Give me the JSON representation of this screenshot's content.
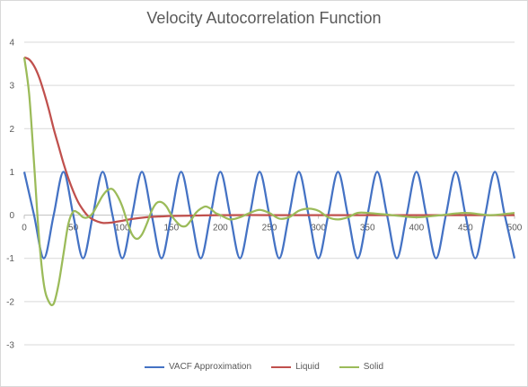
{
  "chart_data": {
    "type": "line",
    "title": "Velocity Autocorrelation Function",
    "xlabel": "",
    "ylabel": "",
    "xlim": [
      0,
      500
    ],
    "ylim": [
      -3,
      4
    ],
    "x_ticks": [
      "0",
      "50",
      "100",
      "150",
      "200",
      "250",
      "300",
      "350",
      "400",
      "450",
      "500"
    ],
    "y_ticks": [
      "4",
      "3",
      "2",
      "1",
      "0",
      "-1",
      "-2",
      "-3"
    ],
    "grid": true,
    "legend_position": "bottom",
    "series": [
      {
        "name": "VACF Approximation",
        "color": "#4472c4",
        "x": [
          0,
          10,
          20,
          30,
          40,
          50,
          60,
          70,
          80,
          90,
          100,
          110,
          120,
          130,
          140,
          150,
          160,
          170,
          180,
          190,
          200,
          210,
          220,
          230,
          240,
          250,
          260,
          270,
          280,
          290,
          300,
          310,
          320,
          330,
          340,
          350,
          360,
          370,
          380,
          390,
          400,
          410,
          420,
          430,
          440,
          450,
          460,
          470,
          480,
          490,
          500
        ],
        "y": [
          1,
          0,
          -1,
          0,
          1,
          0,
          -1,
          0,
          1,
          0,
          -1,
          0,
          1,
          0,
          -1,
          0,
          1,
          0,
          -1,
          0,
          1,
          0,
          -1,
          0,
          1,
          0,
          -1,
          0,
          1,
          0,
          -1,
          0,
          1,
          0,
          -1,
          0,
          1,
          0,
          -1,
          0,
          1,
          0,
          -1,
          0,
          1,
          0,
          -1,
          0,
          1,
          0,
          -1
        ]
      },
      {
        "name": "Liquid",
        "color": "#c0504d",
        "x": [
          0,
          5,
          10,
          15,
          20,
          25,
          30,
          35,
          40,
          45,
          50,
          55,
          60,
          65,
          70,
          75,
          80,
          85,
          90,
          95,
          100,
          110,
          120,
          130,
          140,
          150,
          175,
          200,
          250,
          300,
          350,
          400,
          450,
          500
        ],
        "y": [
          3.65,
          3.6,
          3.45,
          3.2,
          2.85,
          2.45,
          2.0,
          1.6,
          1.2,
          0.85,
          0.55,
          0.3,
          0.12,
          -0.02,
          -0.1,
          -0.15,
          -0.18,
          -0.18,
          -0.17,
          -0.15,
          -0.13,
          -0.09,
          -0.06,
          -0.04,
          -0.03,
          -0.02,
          -0.01,
          0,
          0,
          0,
          0,
          0,
          0,
          0
        ]
      },
      {
        "name": "Solid",
        "color": "#9bbb59",
        "x": [
          0,
          5,
          10,
          15,
          20,
          25,
          30,
          35,
          40,
          45,
          50,
          55,
          60,
          65,
          70,
          75,
          80,
          85,
          90,
          95,
          100,
          105,
          110,
          115,
          120,
          125,
          130,
          135,
          140,
          145,
          150,
          155,
          160,
          165,
          170,
          175,
          180,
          185,
          190,
          195,
          200,
          210,
          220,
          230,
          240,
          250,
          260,
          270,
          280,
          290,
          300,
          310,
          320,
          330,
          340,
          350,
          375,
          400,
          425,
          450,
          475,
          500
        ],
        "y": [
          3.65,
          2.8,
          1.2,
          -0.5,
          -1.6,
          -2.0,
          -2.05,
          -1.6,
          -0.9,
          -0.2,
          0.08,
          0.05,
          -0.05,
          -0.05,
          0.05,
          0.25,
          0.45,
          0.58,
          0.6,
          0.45,
          0.2,
          -0.15,
          -0.45,
          -0.55,
          -0.45,
          -0.2,
          0.1,
          0.28,
          0.3,
          0.2,
          0.0,
          -0.15,
          -0.25,
          -0.25,
          -0.12,
          0.05,
          0.15,
          0.2,
          0.15,
          0.05,
          0.0,
          -0.1,
          -0.05,
          0.05,
          0.12,
          0.05,
          -0.08,
          -0.05,
          0.1,
          0.15,
          0.1,
          -0.05,
          -0.1,
          -0.05,
          0.05,
          0.05,
          0.0,
          -0.05,
          0.0,
          0.05,
          0.0,
          0.05
        ]
      }
    ]
  }
}
